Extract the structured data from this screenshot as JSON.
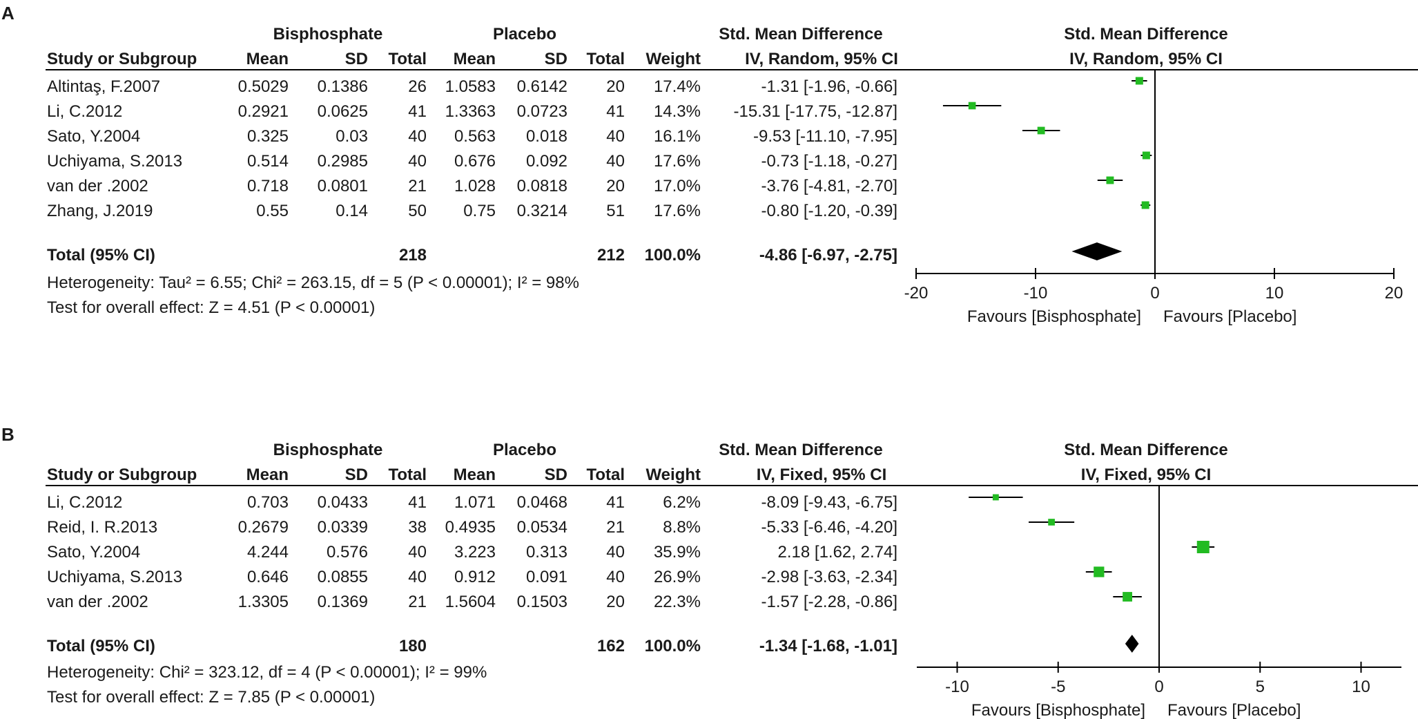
{
  "chart_data": [
    {
      "type": "forest",
      "panel_label": "A",
      "group1": "Bisphosphate",
      "group2": "Placebo",
      "table_effect_header": "Std. Mean Difference",
      "table_method_header": "IV, Random, 95% CI",
      "plot_effect_header": "Std. Mean Difference",
      "plot_method_header": "IV, Random, 95% CI",
      "column_headers": {
        "study": "Study or Subgroup",
        "mean": "Mean",
        "sd": "SD",
        "total": "Total",
        "weight": "Weight"
      },
      "studies": [
        {
          "name": "Altintaş, F.2007",
          "mean1": "0.5029",
          "sd1": "0.1386",
          "n1": "26",
          "mean2": "1.0583",
          "sd2": "0.6142",
          "n2": "20",
          "weight": "17.4%",
          "ci_text": "-1.31 [-1.96, -0.66]",
          "est": -1.31,
          "lo": -1.96,
          "hi": -0.66,
          "w": 17.4
        },
        {
          "name": "Li, C.2012",
          "mean1": "0.2921",
          "sd1": "0.0625",
          "n1": "41",
          "mean2": "1.3363",
          "sd2": "0.0723",
          "n2": "41",
          "weight": "14.3%",
          "ci_text": "-15.31 [-17.75, -12.87]",
          "est": -15.31,
          "lo": -17.75,
          "hi": -12.87,
          "w": 14.3
        },
        {
          "name": "Sato, Y.2004",
          "mean1": "0.325",
          "sd1": "0.03",
          "n1": "40",
          "mean2": "0.563",
          "sd2": "0.018",
          "n2": "40",
          "weight": "16.1%",
          "ci_text": "-9.53 [-11.10, -7.95]",
          "est": -9.53,
          "lo": -11.1,
          "hi": -7.95,
          "w": 16.1
        },
        {
          "name": "Uchiyama, S.2013",
          "mean1": "0.514",
          "sd1": "0.2985",
          "n1": "40",
          "mean2": "0.676",
          "sd2": "0.092",
          "n2": "40",
          "weight": "17.6%",
          "ci_text": "-0.73 [-1.18, -0.27]",
          "est": -0.73,
          "lo": -1.18,
          "hi": -0.27,
          "w": 17.6
        },
        {
          "name": "van der .2002",
          "mean1": "0.718",
          "sd1": "0.0801",
          "n1": "21",
          "mean2": "1.028",
          "sd2": "0.0818",
          "n2": "20",
          "weight": "17.0%",
          "ci_text": "-3.76 [-4.81, -2.70]",
          "est": -3.76,
          "lo": -4.81,
          "hi": -2.7,
          "w": 17.0
        },
        {
          "name": "Zhang, J.2019",
          "mean1": "0.55",
          "sd1": "0.14",
          "n1": "50",
          "mean2": "0.75",
          "sd2": "0.3214",
          "n2": "51",
          "weight": "17.6%",
          "ci_text": "-0.80 [-1.20, -0.39]",
          "est": -0.8,
          "lo": -1.2,
          "hi": -0.39,
          "w": 17.6
        }
      ],
      "total": {
        "label": "Total (95% CI)",
        "n1": "218",
        "n2": "212",
        "weight": "100.0%",
        "ci_text": "-4.86 [-6.97, -2.75]",
        "est": -4.86,
        "lo": -6.97,
        "hi": -2.75
      },
      "heterogeneity": "Heterogeneity: Tau² = 6.55; Chi² = 263.15, df = 5 (P < 0.00001); I² = 98%",
      "overall_effect": "Test for overall effect: Z = 4.51 (P < 0.00001)",
      "x_range": [
        -20,
        20
      ],
      "x_ticks": [
        -20,
        -10,
        0,
        10,
        20
      ],
      "favours_left": "Favours [Bisphosphate]",
      "favours_right": "Favours [Placebo]",
      "marker_color": "#22bb22"
    },
    {
      "type": "forest",
      "panel_label": "B",
      "group1": "Bisphosphate",
      "group2": "Placebo",
      "table_effect_header": "Std. Mean Difference",
      "table_method_header": "IV, Fixed, 95% CI",
      "plot_effect_header": "Std. Mean Difference",
      "plot_method_header": "IV, Fixed, 95% CI",
      "column_headers": {
        "study": "Study or Subgroup",
        "mean": "Mean",
        "sd": "SD",
        "total": "Total",
        "weight": "Weight"
      },
      "studies": [
        {
          "name": "Li, C.2012",
          "mean1": "0.703",
          "sd1": "0.0433",
          "n1": "41",
          "mean2": "1.071",
          "sd2": "0.0468",
          "n2": "41",
          "weight": "6.2%",
          "ci_text": "-8.09 [-9.43, -6.75]",
          "est": -8.09,
          "lo": -9.43,
          "hi": -6.75,
          "w": 6.2
        },
        {
          "name": "Reid, I. R.2013",
          "mean1": "0.2679",
          "sd1": "0.0339",
          "n1": "38",
          "mean2": "0.4935",
          "sd2": "0.0534",
          "n2": "21",
          "weight": "8.8%",
          "ci_text": "-5.33 [-6.46, -4.20]",
          "est": -5.33,
          "lo": -6.46,
          "hi": -4.2,
          "w": 8.8
        },
        {
          "name": "Sato, Y.2004",
          "mean1": "4.244",
          "sd1": "0.576",
          "n1": "40",
          "mean2": "3.223",
          "sd2": "0.313",
          "n2": "40",
          "weight": "35.9%",
          "ci_text": "2.18 [1.62, 2.74]",
          "est": 2.18,
          "lo": 1.62,
          "hi": 2.74,
          "w": 35.9
        },
        {
          "name": "Uchiyama, S.2013",
          "mean1": "0.646",
          "sd1": "0.0855",
          "n1": "40",
          "mean2": "0.912",
          "sd2": "0.091",
          "n2": "40",
          "weight": "26.9%",
          "ci_text": "-2.98 [-3.63, -2.34]",
          "est": -2.98,
          "lo": -3.63,
          "hi": -2.34,
          "w": 26.9
        },
        {
          "name": "van der .2002",
          "mean1": "1.3305",
          "sd1": "0.1369",
          "n1": "21",
          "mean2": "1.5604",
          "sd2": "0.1503",
          "n2": "20",
          "weight": "22.3%",
          "ci_text": "-1.57 [-2.28, -0.86]",
          "est": -1.57,
          "lo": -2.28,
          "hi": -0.86,
          "w": 22.3
        }
      ],
      "total": {
        "label": "Total (95% CI)",
        "n1": "180",
        "n2": "162",
        "weight": "100.0%",
        "ci_text": "-1.34 [-1.68, -1.01]",
        "est": -1.34,
        "lo": -1.68,
        "hi": -1.01
      },
      "heterogeneity": "Heterogeneity: Chi² = 323.12, df = 4 (P < 0.00001); I² = 99%",
      "overall_effect": "Test for overall effect: Z = 7.85 (P < 0.00001)",
      "x_range": [
        -12,
        12
      ],
      "x_ticks": [
        -10,
        -5,
        0,
        5,
        10
      ],
      "favours_left": "Favours [Bisphosphate]",
      "favours_right": "Favours [Placebo]",
      "marker_color": "#22bb22"
    }
  ]
}
